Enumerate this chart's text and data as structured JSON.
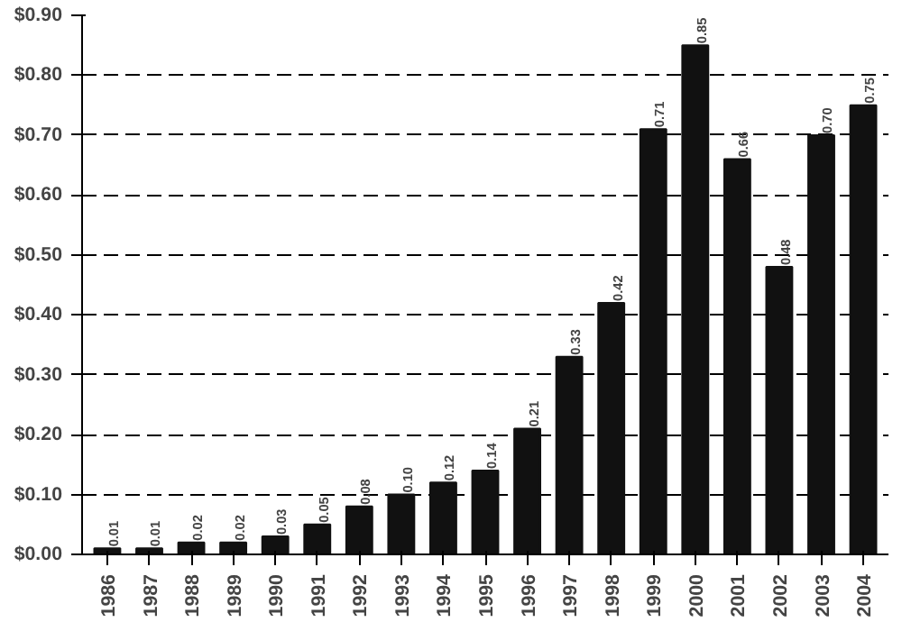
{
  "chart_data": {
    "type": "bar",
    "categories": [
      "1986",
      "1987",
      "1988",
      "1989",
      "1990",
      "1991",
      "1992",
      "1993",
      "1994",
      "1995",
      "1996",
      "1997",
      "1998",
      "1999",
      "2000",
      "2001",
      "2002",
      "2003",
      "2004"
    ],
    "values": [
      0.01,
      0.01,
      0.02,
      0.02,
      0.03,
      0.05,
      0.08,
      0.1,
      0.12,
      0.14,
      0.21,
      0.33,
      0.42,
      0.71,
      0.85,
      0.66,
      0.48,
      0.7,
      0.75
    ],
    "value_labels": [
      "0.01",
      "0.01",
      "0.02",
      "0.02",
      "0.03",
      "0.05",
      "0.08",
      "0.10",
      "0.12",
      "0.14",
      "0.21",
      "0.33",
      "0.42",
      "0.71",
      "0.85",
      "0.66",
      "0.48",
      "0.70",
      "0.75"
    ],
    "color": "#111111",
    "ylim": [
      0,
      0.9
    ],
    "yticks": [
      {
        "value": 0,
        "label": "$0.00"
      },
      {
        "value": 0.1,
        "label": "$0.10"
      },
      {
        "value": 0.2,
        "label": "$0.20"
      },
      {
        "value": 0.3,
        "label": "$0.30"
      },
      {
        "value": 0.4,
        "label": "$0.40"
      },
      {
        "value": 0.5,
        "label": "$0.50"
      },
      {
        "value": 0.6,
        "label": "$0.60"
      },
      {
        "value": 0.7,
        "label": "$0.70"
      },
      {
        "value": 0.8,
        "label": "$0.80"
      },
      {
        "value": 0.9,
        "label": "$0.90"
      }
    ],
    "grid": "y"
  }
}
